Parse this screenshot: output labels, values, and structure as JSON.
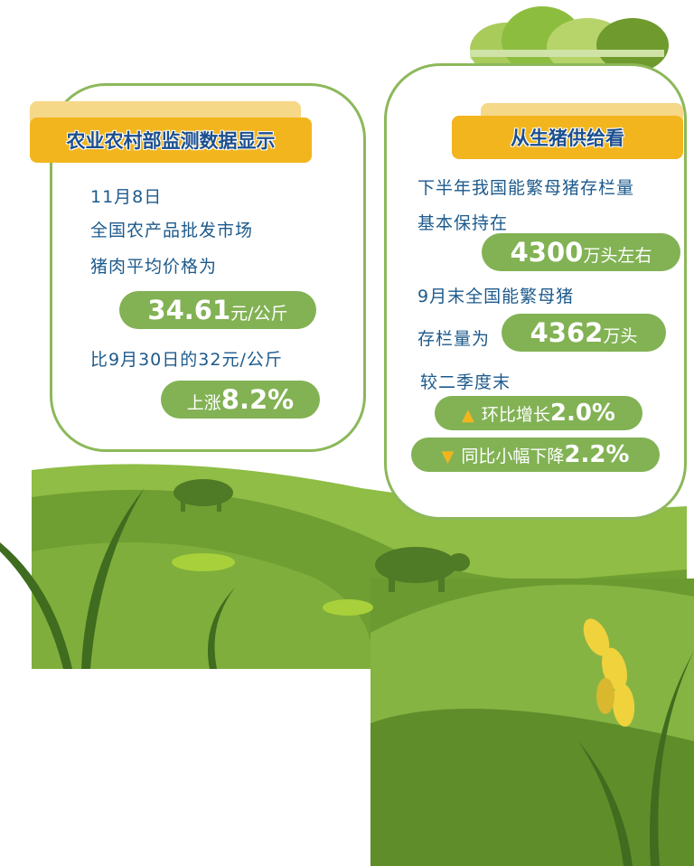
{
  "left_card": {
    "title": "农业农村部监测数据显示",
    "line1": "11月8日",
    "line2": "全国农产品批发市场",
    "line3": "猪肉平均价格为",
    "price_value": "34.61",
    "price_unit": "元/公斤",
    "compare_text": "比9月30日的32元/公斤",
    "rise_label": "上涨",
    "rise_value": "8.2%"
  },
  "right_card": {
    "title": "从生猪供给看",
    "line1": "下半年我国能繁母猪存栏量",
    "line2": "基本保持在",
    "stock_value": "4300",
    "stock_unit": "万头左右",
    "line3": "9月末全国能繁母猪",
    "line4": "存栏量为",
    "sept_value": "4362",
    "sept_unit": "万头",
    "line5": "较二季度末",
    "qoq_label": "环比增长",
    "qoq_value": "2.0%",
    "qoq_icon": "triangle-up",
    "yoy_label": "同比小幅下降",
    "yoy_value": "2.2%",
    "yoy_icon": "triangle-down"
  },
  "colors": {
    "accent": "#f2b51d",
    "pill": "#82b254",
    "text": "#1d5a8c",
    "grass": "#6a9e35"
  }
}
